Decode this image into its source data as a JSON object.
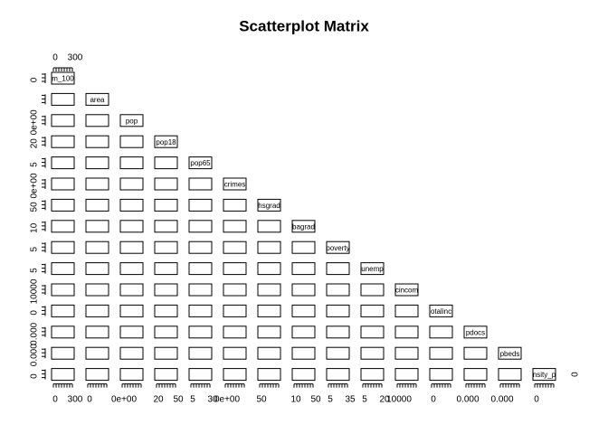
{
  "chart_data": {
    "type": "scatter_matrix",
    "title": "Scatterplot Matrix",
    "variables": [
      "m_100",
      "area",
      "pop",
      "pop18",
      "pop65",
      "crimes",
      "hsgrad",
      "bagrad",
      "poverty",
      "unemp",
      "cincom",
      "otalinc",
      "pdocs",
      "pbeds",
      "nsity_p"
    ],
    "top_tick_labels": [
      "0",
      "300"
    ],
    "bottom_tick_labels": [
      [
        "0",
        "300"
      ],
      [
        "0"
      ],
      [
        "0e+00"
      ],
      [
        "20",
        "50"
      ],
      [
        "5",
        "30"
      ],
      [
        "0e+00"
      ],
      [
        "50"
      ],
      [
        "10",
        "50"
      ],
      [
        "5",
        "35"
      ],
      [
        "5",
        "20"
      ],
      [
        "10000"
      ],
      [
        "0"
      ],
      [
        "0.000"
      ],
      [
        "0.000"
      ],
      [
        "0"
      ]
    ],
    "left_tick_labels": [
      [
        "0"
      ],
      [],
      [
        "0e+00"
      ],
      [
        "20"
      ],
      [
        "5"
      ],
      [
        "0e+00"
      ],
      [
        "50"
      ],
      [
        "10"
      ],
      [
        "5"
      ],
      [
        "5"
      ],
      [
        "10000"
      ],
      [
        "0"
      ],
      [
        "0.000"
      ],
      [
        "0.000"
      ],
      [
        "0"
      ]
    ],
    "right_tick_labels": [
      "0"
    ]
  }
}
